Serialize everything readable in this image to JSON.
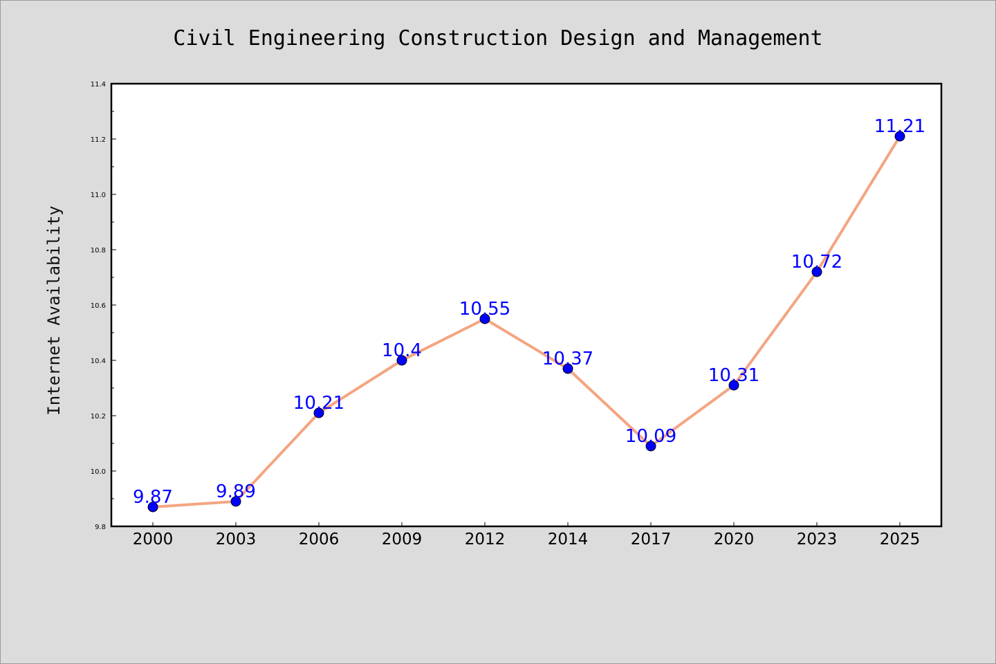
{
  "chart_data": {
    "type": "line",
    "title": "Civil Engineering Construction Design and Management",
    "xlabel": "",
    "ylabel": "Internet Availability",
    "categories": [
      "2000",
      "2003",
      "2006",
      "2009",
      "2012",
      "2014",
      "2017",
      "2020",
      "2023",
      "2025"
    ],
    "series": [
      {
        "values": [
          9.87,
          9.89,
          10.21,
          10.4,
          10.55,
          10.37,
          10.09,
          10.31,
          10.72,
          11.21
        ],
        "labels": [
          "9.87",
          "9.89",
          "10.21",
          "10.4",
          "10.55",
          "10.37",
          "10.09",
          "10.31",
          "10.72",
          "11.21"
        ]
      }
    ],
    "ylim": [
      9.8,
      11.4
    ],
    "yticks": [
      "9.8",
      "10.0",
      "10.2",
      "10.4",
      "10.6",
      "10.8",
      "11.0",
      "11.2",
      "11.4"
    ],
    "grid": false,
    "colors": {
      "line": "#f4a582",
      "marker": "#0000ff",
      "label": "#0000ff",
      "background": "#dcdcdc",
      "plot_background": "#ffffff"
    }
  }
}
